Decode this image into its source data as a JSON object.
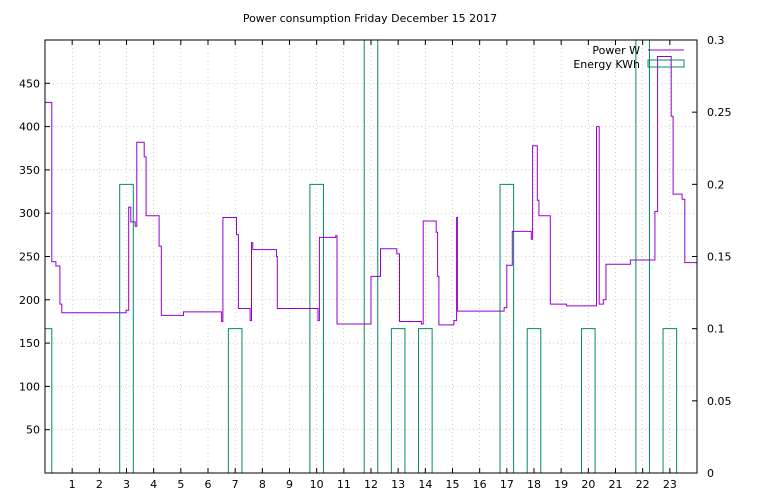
{
  "chart_data": {
    "type": "line",
    "title": "Power consumption Friday December 15 2017",
    "xlabel": "",
    "ylabel": "",
    "y2label": "",
    "xlim": [
      0,
      24
    ],
    "ylim": [
      0,
      500
    ],
    "y2lim": [
      0,
      0.3
    ],
    "x_ticks": [
      1,
      2,
      3,
      4,
      5,
      6,
      7,
      8,
      9,
      10,
      11,
      12,
      13,
      14,
      15,
      16,
      17,
      18,
      19,
      20,
      21,
      22,
      23
    ],
    "y_ticks": [
      50,
      100,
      150,
      200,
      250,
      300,
      350,
      400,
      450
    ],
    "y2_ticks": [
      0,
      0.05,
      0.1,
      0.15,
      0.2,
      0.25,
      0.3
    ],
    "grid": true,
    "legend_position": "top-right",
    "series": [
      {
        "name": "Power W",
        "axis": "left",
        "color": "#9400d3",
        "style": "step",
        "points": [
          [
            0.0,
            428
          ],
          [
            0.25,
            428
          ],
          [
            0.25,
            244
          ],
          [
            0.4,
            244
          ],
          [
            0.4,
            239
          ],
          [
            0.55,
            239
          ],
          [
            0.55,
            195
          ],
          [
            0.62,
            195
          ],
          [
            0.62,
            185
          ],
          [
            2.98,
            185
          ],
          [
            2.98,
            188
          ],
          [
            3.08,
            188
          ],
          [
            3.08,
            307
          ],
          [
            3.16,
            307
          ],
          [
            3.16,
            290
          ],
          [
            3.32,
            290
          ],
          [
            3.32,
            285
          ],
          [
            3.38,
            285
          ],
          [
            3.38,
            382
          ],
          [
            3.65,
            382
          ],
          [
            3.65,
            365
          ],
          [
            3.72,
            365
          ],
          [
            3.72,
            297
          ],
          [
            4.2,
            297
          ],
          [
            4.2,
            262
          ],
          [
            4.28,
            262
          ],
          [
            4.28,
            182
          ],
          [
            5.1,
            182
          ],
          [
            5.1,
            186
          ],
          [
            6.5,
            186
          ],
          [
            6.5,
            175
          ],
          [
            6.55,
            175
          ],
          [
            6.55,
            295
          ],
          [
            7.05,
            295
          ],
          [
            7.05,
            275
          ],
          [
            7.12,
            275
          ],
          [
            7.12,
            190
          ],
          [
            7.55,
            190
          ],
          [
            7.55,
            176
          ],
          [
            7.6,
            176
          ],
          [
            7.6,
            266
          ],
          [
            7.65,
            266
          ],
          [
            7.65,
            258
          ],
          [
            8.52,
            258
          ],
          [
            8.52,
            250
          ],
          [
            8.55,
            250
          ],
          [
            8.55,
            190
          ],
          [
            10.05,
            190
          ],
          [
            10.05,
            176
          ],
          [
            10.1,
            176
          ],
          [
            10.1,
            272
          ],
          [
            10.7,
            272
          ],
          [
            10.7,
            274
          ],
          [
            10.75,
            274
          ],
          [
            10.75,
            172
          ],
          [
            12.0,
            172
          ],
          [
            12.0,
            227
          ],
          [
            12.35,
            227
          ],
          [
            12.35,
            259
          ],
          [
            12.95,
            259
          ],
          [
            12.95,
            253
          ],
          [
            13.05,
            253
          ],
          [
            13.05,
            175
          ],
          [
            13.85,
            175
          ],
          [
            13.85,
            172
          ],
          [
            13.92,
            172
          ],
          [
            13.92,
            291
          ],
          [
            14.4,
            291
          ],
          [
            14.4,
            278
          ],
          [
            14.45,
            278
          ],
          [
            14.45,
            227
          ],
          [
            14.5,
            227
          ],
          [
            14.5,
            171
          ],
          [
            15.05,
            171
          ],
          [
            15.05,
            176
          ],
          [
            15.15,
            176
          ],
          [
            15.15,
            295
          ],
          [
            15.18,
            295
          ],
          [
            15.18,
            187
          ],
          [
            16.9,
            187
          ],
          [
            16.9,
            191
          ],
          [
            17.0,
            191
          ],
          [
            17.0,
            240
          ],
          [
            17.2,
            240
          ],
          [
            17.2,
            279
          ],
          [
            17.9,
            279
          ],
          [
            17.9,
            270
          ],
          [
            17.95,
            270
          ],
          [
            17.95,
            378
          ],
          [
            18.12,
            378
          ],
          [
            18.12,
            315
          ],
          [
            18.18,
            315
          ],
          [
            18.18,
            297
          ],
          [
            18.6,
            297
          ],
          [
            18.6,
            195
          ],
          [
            19.2,
            195
          ],
          [
            19.2,
            193
          ],
          [
            20.3,
            193
          ],
          [
            20.3,
            400
          ],
          [
            20.4,
            400
          ],
          [
            20.4,
            195
          ],
          [
            20.55,
            195
          ],
          [
            20.55,
            200
          ],
          [
            20.65,
            200
          ],
          [
            20.65,
            241
          ],
          [
            21.55,
            241
          ],
          [
            21.55,
            246
          ],
          [
            22.45,
            246
          ],
          [
            22.45,
            302
          ],
          [
            22.55,
            302
          ],
          [
            22.55,
            481
          ],
          [
            23.05,
            481
          ],
          [
            23.05,
            412
          ],
          [
            23.12,
            412
          ],
          [
            23.12,
            322
          ],
          [
            23.45,
            322
          ],
          [
            23.45,
            316
          ],
          [
            23.55,
            316
          ],
          [
            23.55,
            243
          ],
          [
            24.0,
            243
          ]
        ]
      },
      {
        "name": "Energy KWh",
        "axis": "right",
        "color": "#008b6b",
        "style": "impulse-box",
        "boxes": [
          {
            "x0": 0.0,
            "x1": 0.25,
            "value": 0.1
          },
          {
            "x0": 2.75,
            "x1": 3.25,
            "value": 0.2
          },
          {
            "x0": 6.75,
            "x1": 7.25,
            "value": 0.1
          },
          {
            "x0": 9.75,
            "x1": 10.25,
            "value": 0.2
          },
          {
            "x0": 11.75,
            "x1": 12.25,
            "value": 0.3
          },
          {
            "x0": 12.75,
            "x1": 13.25,
            "value": 0.1
          },
          {
            "x0": 13.75,
            "x1": 14.25,
            "value": 0.1
          },
          {
            "x0": 16.75,
            "x1": 17.25,
            "value": 0.2
          },
          {
            "x0": 17.75,
            "x1": 18.25,
            "value": 0.1
          },
          {
            "x0": 19.75,
            "x1": 20.25,
            "value": 0.1
          },
          {
            "x0": 21.75,
            "x1": 22.25,
            "value": 0.3
          },
          {
            "x0": 22.75,
            "x1": 23.25,
            "value": 0.1
          }
        ]
      }
    ]
  }
}
